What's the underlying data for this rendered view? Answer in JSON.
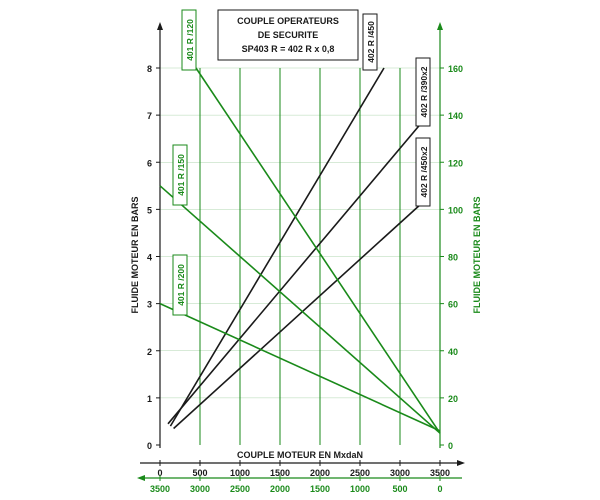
{
  "chart_data": {
    "type": "line",
    "title_lines": [
      "COUPLE OPERATEURS",
      "DE SECURITE",
      "SP403 R = 402 R x 0,8"
    ],
    "xlabel": "COUPLE MOTEUR EN MxdaN",
    "ylabel_left": "FLUIDE MOTEUR EN BARS",
    "ylabel_right": "FLUIDE MOTEUR EN BARS",
    "x_top": {
      "lim": [
        0,
        3500
      ],
      "ticks": [
        0,
        500,
        1000,
        1500,
        2000,
        2500,
        3000,
        3500
      ]
    },
    "x_bottom": {
      "lim": [
        3500,
        0
      ],
      "ticks": [
        3500,
        3000,
        2500,
        2000,
        1500,
        1000,
        500,
        0
      ]
    },
    "y_left": {
      "lim": [
        0,
        8
      ],
      "ticks": [
        0,
        1,
        2,
        3,
        4,
        5,
        6,
        7,
        8
      ]
    },
    "y_right": {
      "lim": [
        0,
        160
      ],
      "ticks": [
        0,
        20,
        40,
        60,
        80,
        100,
        120,
        140,
        160
      ]
    },
    "grid": true,
    "colors": {
      "black": "#1a1a1a",
      "green": "#1a8a1a"
    },
    "series": [
      {
        "name": "402 R /450",
        "color": "black",
        "x_axis": "top",
        "y_axis": "left",
        "x": [
          130,
          2800
        ],
        "y": [
          0.4,
          8.0
        ]
      },
      {
        "name": "402 R /390x2",
        "color": "black",
        "x_axis": "top",
        "y_axis": "left",
        "x": [
          100,
          3350
        ],
        "y": [
          0.45,
          7.0
        ]
      },
      {
        "name": "402 R /450x2",
        "color": "black",
        "x_axis": "top",
        "y_axis": "left",
        "x": [
          170,
          3350
        ],
        "y": [
          0.35,
          5.25
        ]
      },
      {
        "name": "401 R /120",
        "color": "green",
        "x_axis": "bottom",
        "y_axis": "right",
        "x": [
          3050,
          0
        ],
        "y": [
          160,
          5
        ]
      },
      {
        "name": "401 R /150",
        "color": "green",
        "x_axis": "bottom",
        "y_axis": "right",
        "x": [
          3500,
          0
        ],
        "y": [
          110,
          5
        ]
      },
      {
        "name": "401 R /200",
        "color": "green",
        "x_axis": "bottom",
        "y_axis": "right",
        "x": [
          3500,
          0
        ],
        "y": [
          60,
          6
        ]
      }
    ]
  }
}
